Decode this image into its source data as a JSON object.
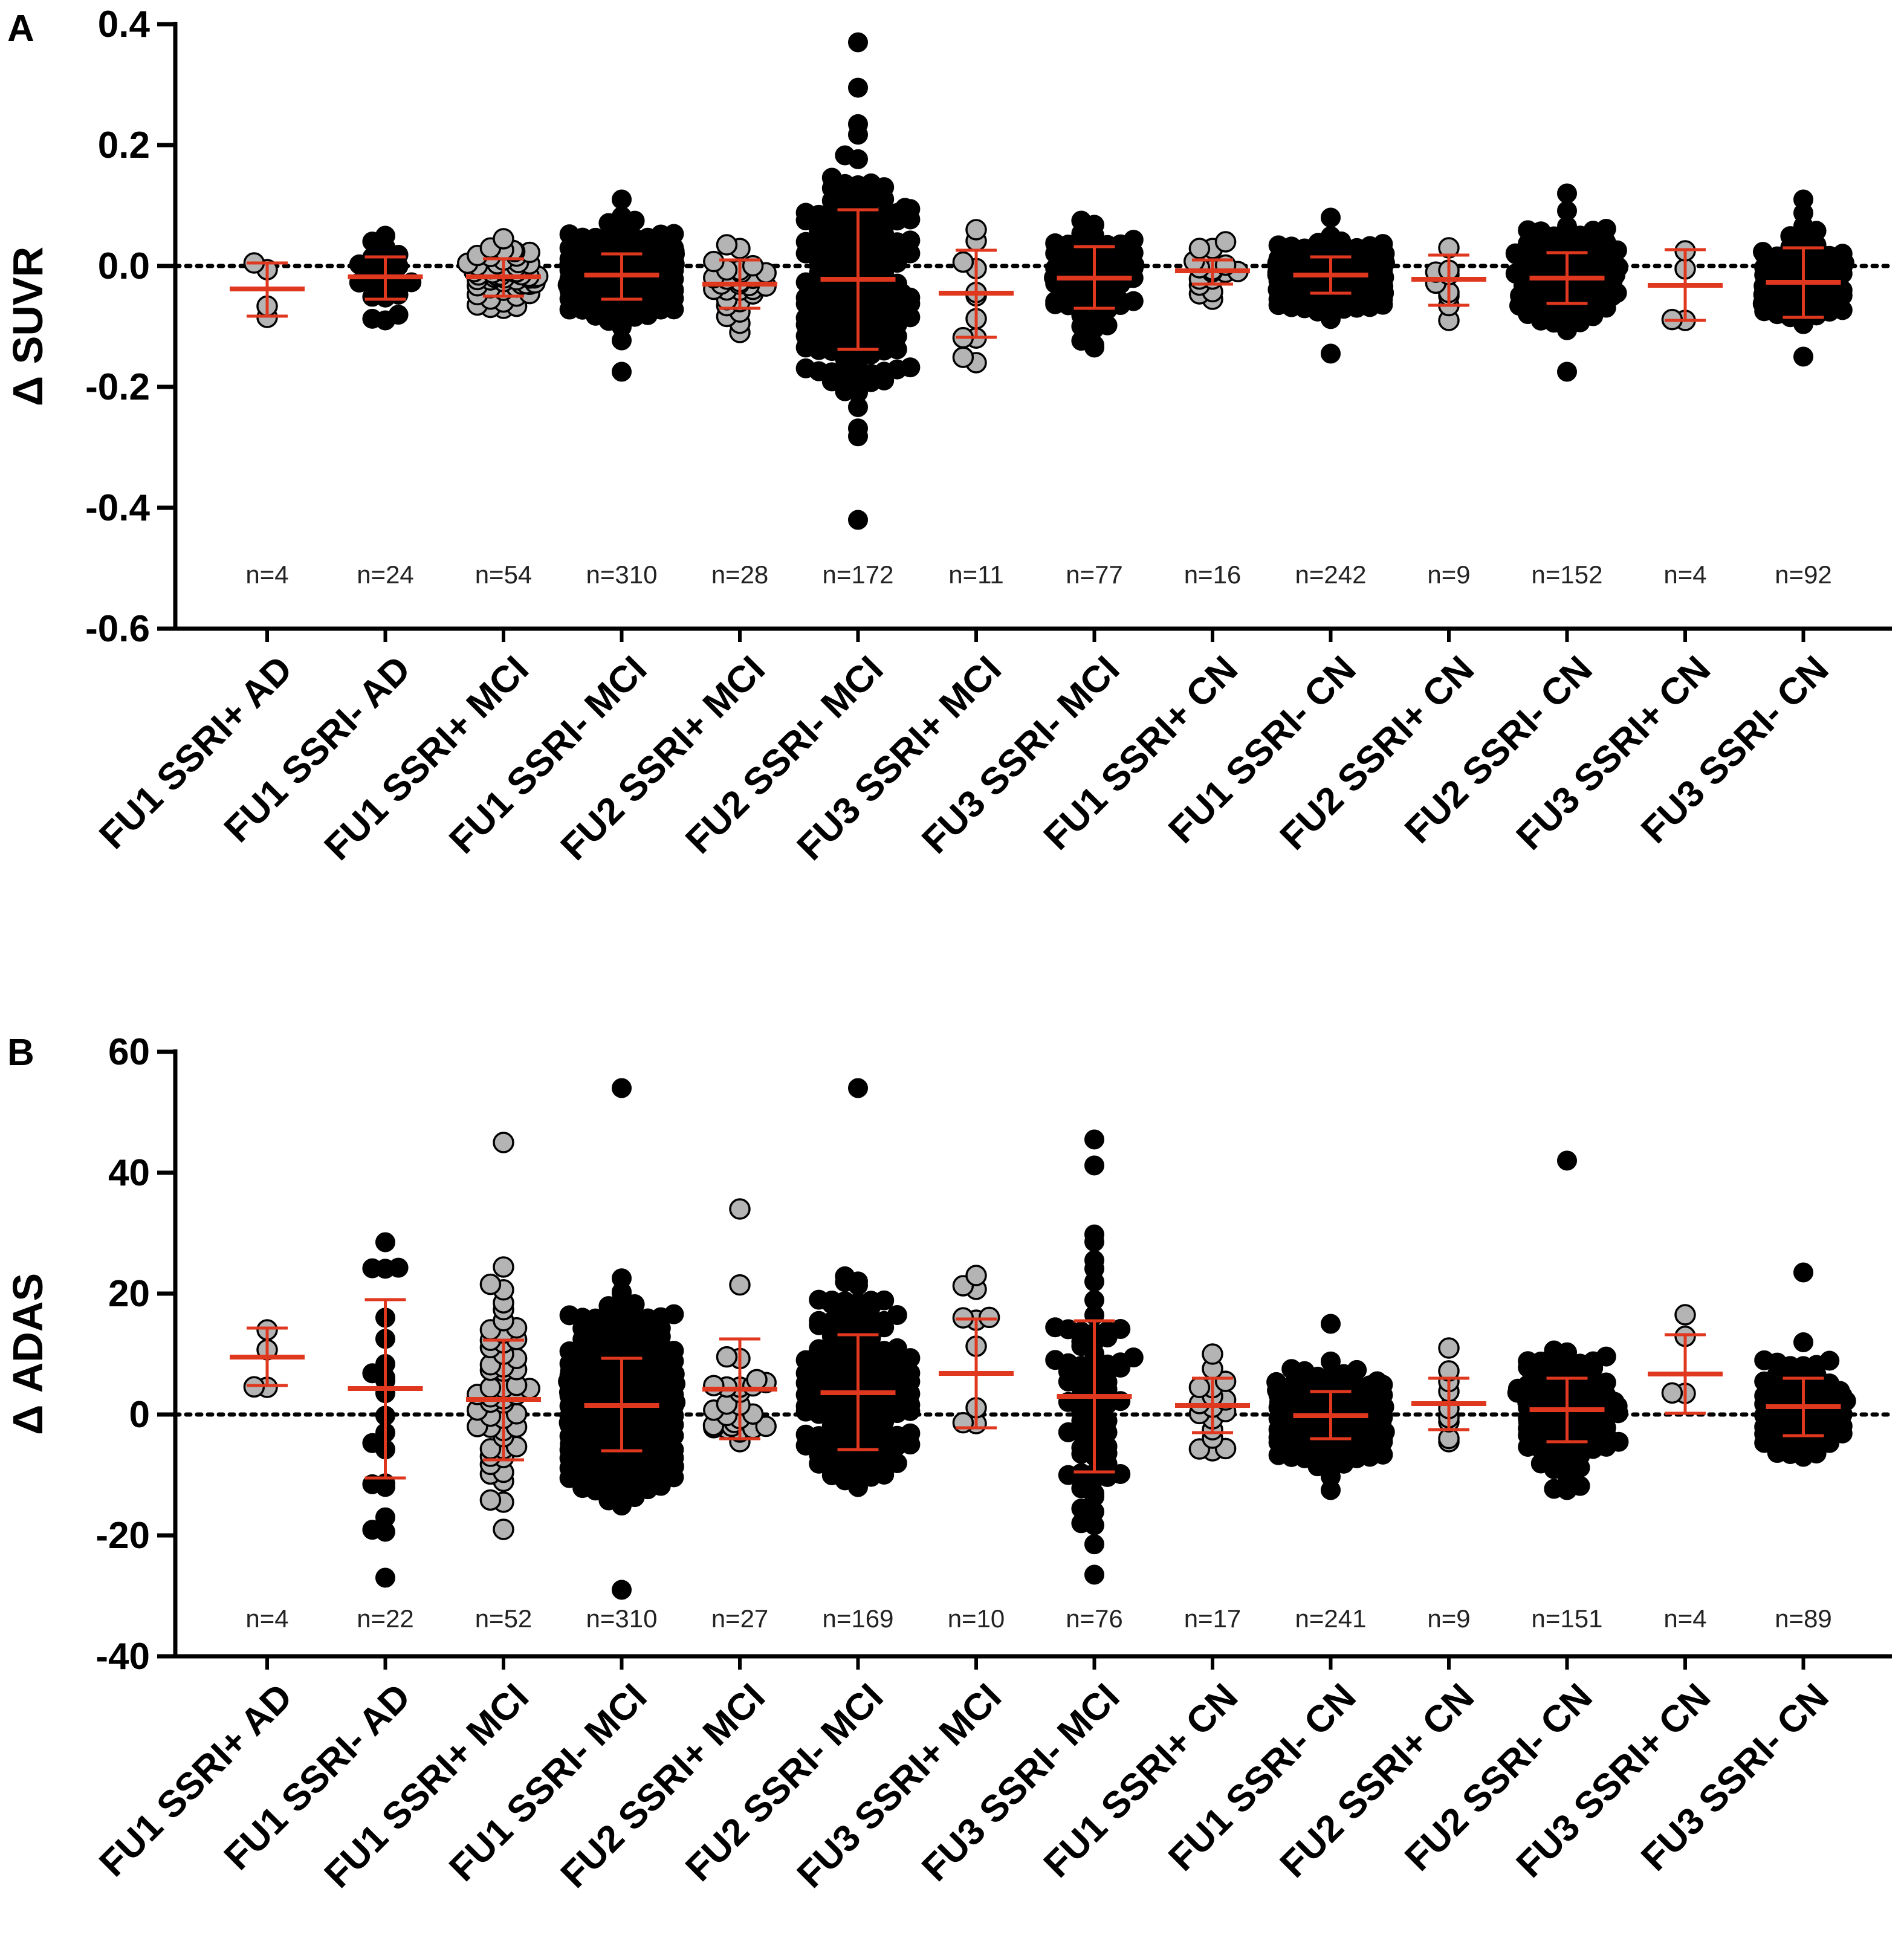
{
  "chart_data": [
    {
      "type": "scatter",
      "panel": "A",
      "ylabel": "Δ SUVR",
      "ylim": [
        -0.6,
        0.4
      ],
      "yticks": [
        "0.4",
        "0.2",
        "0.0",
        "-0.2",
        "-0.4",
        "-0.6"
      ],
      "ytick_values": [
        0.4,
        0.2,
        0.0,
        -0.2,
        -0.4,
        -0.6
      ],
      "zero_line": "dotted",
      "categories": [
        "FU1 SSRI+ AD",
        "FU1 SSRI- AD",
        "FU1 SSRI+ MCI",
        "FU1 SSRI- MCI",
        "FU2 SSRI+ MCI",
        "FU2 SSRI- MCI",
        "FU3 SSRI+ MCI",
        "FU3 SSRI- MCI",
        "FU1 SSRI+ CN",
        "FU1 SSRI- CN",
        "FU2 SSRI+ CN",
        "FU2 SSRI- CN",
        "FU3 SSRI+ CN",
        "FU3 SSRI- CN"
      ],
      "n_labels": [
        "n=4",
        "n=24",
        "n=54",
        "n=310",
        "n=28",
        "n=172",
        "n=11",
        "n=77",
        "n=16",
        "n=242",
        "n=9",
        "n=152",
        "n=4",
        "n=92"
      ],
      "n": [
        4,
        24,
        54,
        310,
        28,
        172,
        11,
        77,
        16,
        242,
        9,
        152,
        4,
        92
      ],
      "marker_colors": [
        "#b4b4b4",
        "#000000",
        "#b4b4b4",
        "#000000",
        "#b4b4b4",
        "#000000",
        "#b4b4b4",
        "#000000",
        "#b4b4b4",
        "#000000",
        "#b4b4b4",
        "#000000",
        "#b4b4b4",
        "#000000"
      ],
      "mean": [
        -0.038,
        -0.018,
        -0.018,
        -0.015,
        -0.03,
        -0.022,
        -0.045,
        -0.02,
        -0.008,
        -0.015,
        -0.022,
        -0.02,
        -0.032,
        -0.027
      ],
      "sd_lower": [
        -0.083,
        -0.055,
        -0.05,
        -0.055,
        -0.07,
        -0.138,
        -0.118,
        -0.07,
        -0.03,
        -0.045,
        -0.065,
        -0.062,
        -0.09,
        -0.085
      ],
      "sd_upper": [
        0.005,
        0.015,
        0.012,
        0.02,
        0.01,
        0.093,
        0.026,
        0.032,
        0.01,
        0.015,
        0.018,
        0.022,
        0.027,
        0.03
      ],
      "min": [
        -0.085,
        -0.09,
        -0.07,
        -0.175,
        -0.11,
        -0.42,
        -0.16,
        -0.135,
        -0.055,
        -0.145,
        -0.09,
        -0.175,
        -0.09,
        -0.15
      ],
      "max": [
        0.005,
        0.05,
        0.045,
        0.11,
        0.035,
        0.37,
        0.06,
        0.075,
        0.04,
        0.08,
        0.03,
        0.12,
        0.025,
        0.11
      ]
    },
    {
      "type": "scatter",
      "panel": "B",
      "ylabel": "Δ ADAS",
      "ylim": [
        -40,
        60
      ],
      "yticks": [
        "60",
        "40",
        "20",
        "0",
        "-20",
        "-40"
      ],
      "ytick_values": [
        60,
        40,
        20,
        0,
        -20,
        -40
      ],
      "zero_line": "dotted",
      "categories": [
        "FU1 SSRI+ AD",
        "FU1 SSRI- AD",
        "FU1 SSRI+ MCI",
        "FU1 SSRI- MCI",
        "FU2 SSRI+ MCI",
        "FU2 SSRI- MCI",
        "FU3 SSRI+ MCI",
        "FU3 SSRI- MCI",
        "FU1 SSRI+ CN",
        "FU1 SSRI- CN",
        "FU2 SSRI+ CN",
        "FU2 SSRI- CN",
        "FU3 SSRI+ CN",
        "FU3 SSRI- CN"
      ],
      "n_labels": [
        "n=4",
        "n=22",
        "n=52",
        "n=310",
        "n=27",
        "n=169",
        "n=10",
        "n=76",
        "n=17",
        "n=241",
        "n=9",
        "n=151",
        "n=4",
        "n=89"
      ],
      "n": [
        4,
        22,
        52,
        310,
        27,
        169,
        10,
        76,
        17,
        241,
        9,
        151,
        4,
        89
      ],
      "marker_colors": [
        "#b4b4b4",
        "#000000",
        "#b4b4b4",
        "#000000",
        "#b4b4b4",
        "#000000",
        "#b4b4b4",
        "#000000",
        "#b4b4b4",
        "#000000",
        "#b4b4b4",
        "#000000",
        "#b4b4b4",
        "#000000"
      ],
      "mean": [
        9.5,
        4.3,
        2.5,
        1.5,
        4.2,
        3.6,
        6.8,
        3.0,
        1.5,
        -0.2,
        1.8,
        0.8,
        6.7,
        1.3
      ],
      "sd_lower": [
        4.8,
        -10.5,
        -7.5,
        -6.0,
        -4.0,
        -5.8,
        -2.2,
        -9.5,
        -3.0,
        -4.0,
        -2.5,
        -4.5,
        0.2,
        -3.5
      ],
      "sd_upper": [
        14.3,
        19.0,
        12.3,
        9.3,
        12.5,
        13.2,
        15.8,
        15.5,
        6.0,
        3.8,
        6.0,
        6.0,
        13.2,
        6.0
      ],
      "min": [
        4.5,
        -27.0,
        -19.0,
        -29.0,
        -4.5,
        -12.0,
        -1.5,
        -26.5,
        -6.0,
        -12.5,
        -4.5,
        -12.5,
        3.5,
        -7.0
      ],
      "max": [
        14.0,
        28.5,
        45.0,
        54.0,
        34.0,
        54.0,
        23.0,
        45.5,
        10.0,
        15.0,
        11.0,
        42.0,
        16.5,
        23.5
      ]
    }
  ],
  "colors": {
    "axis": "#000000",
    "mean_sd": "#e0371f",
    "grey_marker": "#b4b4b4",
    "black_marker": "#000000"
  }
}
